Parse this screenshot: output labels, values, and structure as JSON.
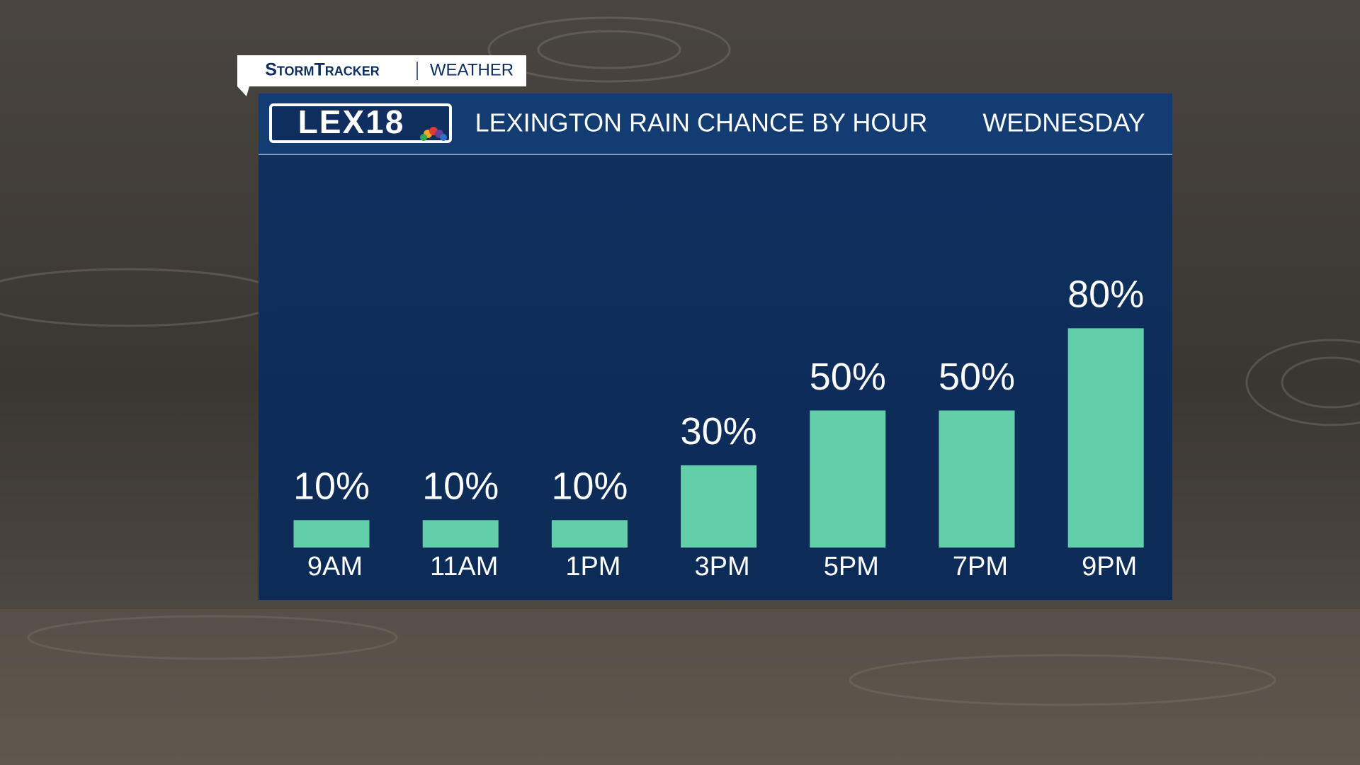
{
  "header": {
    "brand": "StormTracker",
    "section": "WEATHER",
    "logo": "LEX18"
  },
  "chart_data": {
    "type": "bar",
    "title": "LEXINGTON RAIN CHANCE BY HOUR",
    "subtitle": "WEDNESDAY",
    "categories": [
      "9AM",
      "11AM",
      "1PM",
      "3PM",
      "5PM",
      "7PM",
      "9PM"
    ],
    "values": [
      10,
      10,
      10,
      30,
      50,
      50,
      80
    ],
    "value_labels": [
      "10%",
      "10%",
      "10%",
      "30%",
      "50%",
      "50%",
      "80%"
    ],
    "color": "#63cfaa"
  }
}
